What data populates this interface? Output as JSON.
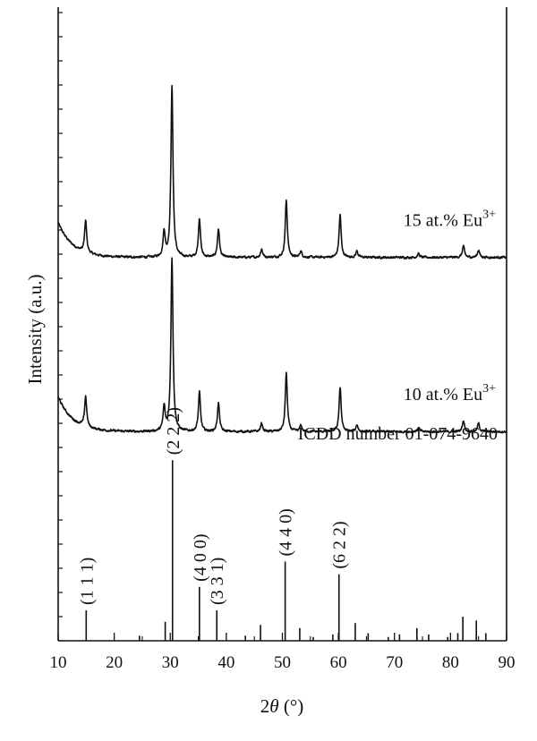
{
  "chart_data": {
    "type": "line",
    "xlabel_base": "2",
    "xlabel_symbol": "θ",
    "xlabel_unit": " (°)",
    "ylabel": "Intensity (a.u.)",
    "xlim": [
      10,
      90
    ],
    "x_ticks": [
      10,
      20,
      30,
      40,
      50,
      60,
      70,
      80,
      90
    ],
    "x_tick_labels": [
      "10",
      "20",
      "30",
      "40",
      "50",
      "60",
      "70",
      "80",
      "90"
    ],
    "grid": false,
    "legend": "none",
    "series": [
      {
        "name": "15 at.% Eu",
        "name_sup": "3+",
        "baseline": 0.605,
        "peaks": [
          {
            "x": 14.9,
            "h": 0.05
          },
          {
            "x": 28.9,
            "h": 0.04
          },
          {
            "x": 30.3,
            "h": 0.27
          },
          {
            "x": 35.2,
            "h": 0.062
          },
          {
            "x": 38.6,
            "h": 0.045
          },
          {
            "x": 46.3,
            "h": 0.013
          },
          {
            "x": 50.7,
            "h": 0.09
          },
          {
            "x": 53.3,
            "h": 0.01
          },
          {
            "x": 60.3,
            "h": 0.067
          },
          {
            "x": 63.3,
            "h": 0.01
          },
          {
            "x": 74.3,
            "h": 0.006
          },
          {
            "x": 82.3,
            "h": 0.018
          },
          {
            "x": 85.0,
            "h": 0.012
          }
        ]
      },
      {
        "name": "10 at.% Eu",
        "name_sup": "3+",
        "baseline": 0.33,
        "peaks": [
          {
            "x": 14.9,
            "h": 0.048
          },
          {
            "x": 28.9,
            "h": 0.038
          },
          {
            "x": 30.3,
            "h": 0.275
          },
          {
            "x": 35.2,
            "h": 0.062
          },
          {
            "x": 38.6,
            "h": 0.045
          },
          {
            "x": 46.3,
            "h": 0.013
          },
          {
            "x": 50.7,
            "h": 0.092
          },
          {
            "x": 53.3,
            "h": 0.01
          },
          {
            "x": 60.3,
            "h": 0.07
          },
          {
            "x": 63.3,
            "h": 0.011
          },
          {
            "x": 74.3,
            "h": 0.006
          },
          {
            "x": 82.3,
            "h": 0.018
          },
          {
            "x": 85.0,
            "h": 0.013
          }
        ]
      }
    ],
    "reference": {
      "label": "ICDD number 01-074-9640",
      "lines": [
        {
          "x": 15.0,
          "h": 0.048,
          "hkl": "(1 1 1)"
        },
        {
          "x": 24.5,
          "h": 0.008,
          "hkl": ""
        },
        {
          "x": 29.1,
          "h": 0.03,
          "hkl": ""
        },
        {
          "x": 30.4,
          "h": 0.285,
          "hkl": "(2 2 2)"
        },
        {
          "x": 35.2,
          "h": 0.085,
          "hkl": "(4 0 0)"
        },
        {
          "x": 38.3,
          "h": 0.048,
          "hkl": "(3 3 1)"
        },
        {
          "x": 43.4,
          "h": 0.008,
          "hkl": ""
        },
        {
          "x": 46.1,
          "h": 0.025,
          "hkl": ""
        },
        {
          "x": 50.5,
          "h": 0.125,
          "hkl": "(4 4 0)"
        },
        {
          "x": 53.1,
          "h": 0.02,
          "hkl": ""
        },
        {
          "x": 55.5,
          "h": 0.006,
          "hkl": ""
        },
        {
          "x": 59.0,
          "h": 0.01,
          "hkl": ""
        },
        {
          "x": 60.1,
          "h": 0.105,
          "hkl": "(6 2 2)"
        },
        {
          "x": 63.0,
          "h": 0.028,
          "hkl": ""
        },
        {
          "x": 65.3,
          "h": 0.012,
          "hkl": ""
        },
        {
          "x": 68.9,
          "h": 0.006,
          "hkl": ""
        },
        {
          "x": 70.9,
          "h": 0.01,
          "hkl": ""
        },
        {
          "x": 74.0,
          "h": 0.02,
          "hkl": ""
        },
        {
          "x": 76.1,
          "h": 0.01,
          "hkl": ""
        },
        {
          "x": 79.5,
          "h": 0.006,
          "hkl": ""
        },
        {
          "x": 81.3,
          "h": 0.012,
          "hkl": ""
        },
        {
          "x": 82.2,
          "h": 0.038,
          "hkl": ""
        },
        {
          "x": 84.6,
          "h": 0.032,
          "hkl": ""
        },
        {
          "x": 86.3,
          "h": 0.012,
          "hkl": ""
        }
      ]
    }
  }
}
